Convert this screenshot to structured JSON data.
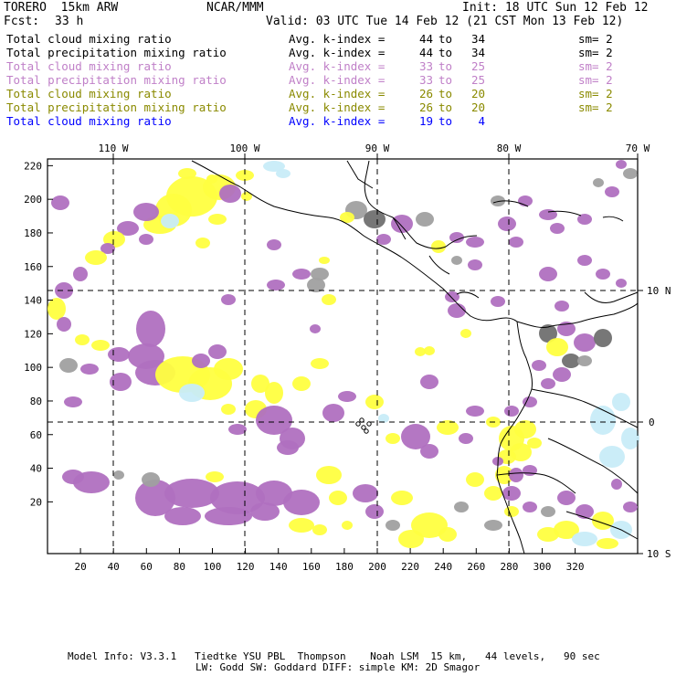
{
  "header": {
    "model": "TORERO  15km ARW",
    "org": "NCAR/MMM",
    "init": "Init: 18 UTC Sun 12 Feb 12",
    "fcst_label": "Fcst:",
    "fcst_value": "33 h",
    "valid": "Valid: 03 UTC Tue 14 Feb 12 (21 CST Mon 13 Feb 12)"
  },
  "legend": [
    {
      "field": "Total cloud mixing ratio",
      "kindex": "Avg. k-index =",
      "from": "44",
      "to_word": "to",
      "to": "34",
      "sm": "sm= 2",
      "color": "#000000"
    },
    {
      "field": "Total precipitation mixing ratio",
      "kindex": "Avg. k-index =",
      "from": "44",
      "to_word": "to",
      "to": "34",
      "sm": "sm= 2",
      "color": "#000000"
    },
    {
      "field": "Total cloud mixing ratio",
      "kindex": "Avg. k-index =",
      "from": "33",
      "to_word": "to",
      "to": "25",
      "sm": "sm= 2",
      "color": "#c080c8"
    },
    {
      "field": "Total precipitation mixing ratio",
      "kindex": "Avg. k-index =",
      "from": "33",
      "to_word": "to",
      "to": "25",
      "sm": "sm= 2",
      "color": "#c080c8"
    },
    {
      "field": "Total cloud mixing ratio",
      "kindex": "Avg. k-index =",
      "from": "26",
      "to_word": "to",
      "to": "20",
      "sm": "sm= 2",
      "color": "#8a8a00"
    },
    {
      "field": "Total precipitation mixing ratio",
      "kindex": "Avg. k-index =",
      "from": "26",
      "to_word": "to",
      "to": "20",
      "sm": "sm= 2",
      "color": "#8a8a00"
    },
    {
      "field": "Total cloud mixing ratio",
      "kindex": "Avg. k-index =",
      "from": "19",
      "to_word": "to",
      "to": "4",
      "sm": "",
      "color": "#0000ff"
    }
  ],
  "map": {
    "lon_labels": [
      "110 W",
      "100 W",
      "90 W",
      "80 W",
      "70 W"
    ],
    "lat_labels": [
      "10 N",
      "0",
      "10 S"
    ],
    "x_ticks": [
      "20",
      "40",
      "60",
      "80",
      "100",
      "120",
      "140",
      "160",
      "180",
      "200",
      "220",
      "240",
      "260",
      "280",
      "300",
      "320"
    ],
    "y_ticks": [
      "20",
      "40",
      "60",
      "80",
      "100",
      "120",
      "140",
      "160",
      "180",
      "200",
      "220"
    ],
    "colors": {
      "gray": "#a0a0a0",
      "dark_gray": "#707070",
      "purple": "#b070c0",
      "yellow": "#ffff40",
      "light_blue": "#c8ecf8",
      "coast": "#000000"
    }
  },
  "footer": {
    "line1": "Model Info: V3.3.1   Tiedtke YSU PBL  Thompson    Noah LSM  15 km,   44 levels,   90 sec",
    "line2": "LW: Godd SW: Goddard DIFF: simple KM: 2D Smagor"
  }
}
